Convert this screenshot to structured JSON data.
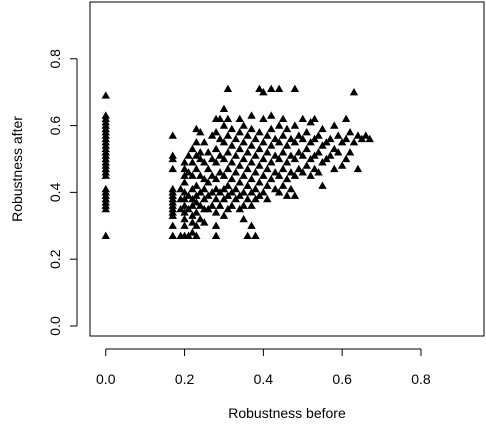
{
  "chart_data": {
    "type": "scatter",
    "title": "",
    "xlabel": "Robustness before",
    "ylabel": "Robustness after",
    "xlim": [
      -0.04,
      0.96
    ],
    "ylim": [
      -0.03,
      0.97
    ],
    "x_ticks": [
      0.0,
      0.2,
      0.4,
      0.6,
      0.8
    ],
    "x_tick_labels": [
      "0.0",
      "0.2",
      "0.4",
      "0.6",
      "0.8"
    ],
    "y_ticks": [
      0.0,
      0.2,
      0.4,
      0.6,
      0.8
    ],
    "y_tick_labels": [
      "0.0",
      "0.2",
      "0.4",
      "0.6",
      "0.8"
    ],
    "grid": false,
    "marker": "filled-triangle",
    "marker_color": "#000000",
    "series": [
      {
        "points": [
          [
            0.0,
            0.69
          ],
          [
            0.0,
            0.63
          ],
          [
            0.0,
            0.62
          ],
          [
            0.0,
            0.61
          ],
          [
            0.0,
            0.6
          ],
          [
            0.0,
            0.59
          ],
          [
            0.0,
            0.58
          ],
          [
            0.0,
            0.57
          ],
          [
            0.0,
            0.56
          ],
          [
            0.0,
            0.55
          ],
          [
            0.0,
            0.54
          ],
          [
            0.0,
            0.53
          ],
          [
            0.0,
            0.52
          ],
          [
            0.0,
            0.51
          ],
          [
            0.0,
            0.5
          ],
          [
            0.0,
            0.49
          ],
          [
            0.0,
            0.48
          ],
          [
            0.0,
            0.47
          ],
          [
            0.0,
            0.46
          ],
          [
            0.0,
            0.45
          ],
          [
            0.0,
            0.41
          ],
          [
            0.0,
            0.4
          ],
          [
            0.0,
            0.39
          ],
          [
            0.0,
            0.38
          ],
          [
            0.0,
            0.37
          ],
          [
            0.0,
            0.36
          ],
          [
            0.0,
            0.35
          ],
          [
            0.0,
            0.27
          ],
          [
            0.17,
            0.57
          ],
          [
            0.17,
            0.51
          ],
          [
            0.17,
            0.5
          ],
          [
            0.17,
            0.47
          ],
          [
            0.17,
            0.41
          ],
          [
            0.17,
            0.4
          ],
          [
            0.17,
            0.39
          ],
          [
            0.17,
            0.38
          ],
          [
            0.17,
            0.37
          ],
          [
            0.17,
            0.36
          ],
          [
            0.17,
            0.35
          ],
          [
            0.17,
            0.34
          ],
          [
            0.17,
            0.33
          ],
          [
            0.17,
            0.3
          ],
          [
            0.17,
            0.27
          ],
          [
            0.19,
            0.41
          ],
          [
            0.19,
            0.38
          ],
          [
            0.19,
            0.35
          ],
          [
            0.19,
            0.27
          ],
          [
            0.2,
            0.49
          ],
          [
            0.2,
            0.47
          ],
          [
            0.2,
            0.45
          ],
          [
            0.2,
            0.43
          ],
          [
            0.2,
            0.4
          ],
          [
            0.2,
            0.38
          ],
          [
            0.2,
            0.36
          ],
          [
            0.2,
            0.34
          ],
          [
            0.2,
            0.32
          ],
          [
            0.2,
            0.3
          ],
          [
            0.2,
            0.27
          ],
          [
            0.21,
            0.51
          ],
          [
            0.21,
            0.46
          ],
          [
            0.21,
            0.39
          ],
          [
            0.21,
            0.35
          ],
          [
            0.21,
            0.27
          ],
          [
            0.22,
            0.53
          ],
          [
            0.22,
            0.49
          ],
          [
            0.22,
            0.45
          ],
          [
            0.22,
            0.41
          ],
          [
            0.22,
            0.38
          ],
          [
            0.22,
            0.36
          ],
          [
            0.22,
            0.33
          ],
          [
            0.22,
            0.31
          ],
          [
            0.22,
            0.28
          ],
          [
            0.23,
            0.59
          ],
          [
            0.23,
            0.55
          ],
          [
            0.23,
            0.51
          ],
          [
            0.23,
            0.47
          ],
          [
            0.23,
            0.42
          ],
          [
            0.23,
            0.39
          ],
          [
            0.23,
            0.37
          ],
          [
            0.23,
            0.34
          ],
          [
            0.23,
            0.3
          ],
          [
            0.23,
            0.27
          ],
          [
            0.24,
            0.58
          ],
          [
            0.24,
            0.52
          ],
          [
            0.24,
            0.5
          ],
          [
            0.24,
            0.45
          ],
          [
            0.24,
            0.4
          ],
          [
            0.24,
            0.36
          ],
          [
            0.24,
            0.32
          ],
          [
            0.25,
            0.55
          ],
          [
            0.25,
            0.49
          ],
          [
            0.25,
            0.44
          ],
          [
            0.25,
            0.41
          ],
          [
            0.25,
            0.38
          ],
          [
            0.25,
            0.35
          ],
          [
            0.25,
            0.31
          ],
          [
            0.26,
            0.52
          ],
          [
            0.26,
            0.47
          ],
          [
            0.26,
            0.43
          ],
          [
            0.26,
            0.39
          ],
          [
            0.26,
            0.35
          ],
          [
            0.27,
            0.57
          ],
          [
            0.27,
            0.5
          ],
          [
            0.27,
            0.45
          ],
          [
            0.27,
            0.4
          ],
          [
            0.27,
            0.36
          ],
          [
            0.28,
            0.62
          ],
          [
            0.28,
            0.58
          ],
          [
            0.28,
            0.53
          ],
          [
            0.28,
            0.49
          ],
          [
            0.28,
            0.44
          ],
          [
            0.28,
            0.41
          ],
          [
            0.28,
            0.38
          ],
          [
            0.28,
            0.34
          ],
          [
            0.28,
            0.3
          ],
          [
            0.28,
            0.27
          ],
          [
            0.29,
            0.62
          ],
          [
            0.29,
            0.56
          ],
          [
            0.29,
            0.51
          ],
          [
            0.29,
            0.46
          ],
          [
            0.29,
            0.4
          ],
          [
            0.29,
            0.36
          ],
          [
            0.3,
            0.65
          ],
          [
            0.3,
            0.6
          ],
          [
            0.3,
            0.55
          ],
          [
            0.3,
            0.5
          ],
          [
            0.3,
            0.45
          ],
          [
            0.3,
            0.41
          ],
          [
            0.3,
            0.38
          ],
          [
            0.3,
            0.33
          ],
          [
            0.31,
            0.71
          ],
          [
            0.31,
            0.62
          ],
          [
            0.31,
            0.57
          ],
          [
            0.31,
            0.52
          ],
          [
            0.31,
            0.47
          ],
          [
            0.31,
            0.42
          ],
          [
            0.31,
            0.39
          ],
          [
            0.31,
            0.35
          ],
          [
            0.32,
            0.59
          ],
          [
            0.32,
            0.54
          ],
          [
            0.32,
            0.49
          ],
          [
            0.32,
            0.44
          ],
          [
            0.32,
            0.4
          ],
          [
            0.32,
            0.36
          ],
          [
            0.33,
            0.56
          ],
          [
            0.33,
            0.51
          ],
          [
            0.33,
            0.46
          ],
          [
            0.33,
            0.41
          ],
          [
            0.33,
            0.38
          ],
          [
            0.34,
            0.62
          ],
          [
            0.34,
            0.58
          ],
          [
            0.34,
            0.53
          ],
          [
            0.34,
            0.48
          ],
          [
            0.34,
            0.43
          ],
          [
            0.34,
            0.39
          ],
          [
            0.34,
            0.35
          ],
          [
            0.35,
            0.6
          ],
          [
            0.35,
            0.55
          ],
          [
            0.35,
            0.5
          ],
          [
            0.35,
            0.45
          ],
          [
            0.35,
            0.4
          ],
          [
            0.35,
            0.36
          ],
          [
            0.35,
            0.32
          ],
          [
            0.36,
            0.57
          ],
          [
            0.36,
            0.52
          ],
          [
            0.36,
            0.47
          ],
          [
            0.36,
            0.42
          ],
          [
            0.36,
            0.38
          ],
          [
            0.36,
            0.27
          ],
          [
            0.37,
            0.63
          ],
          [
            0.37,
            0.59
          ],
          [
            0.37,
            0.54
          ],
          [
            0.37,
            0.49
          ],
          [
            0.37,
            0.44
          ],
          [
            0.37,
            0.4
          ],
          [
            0.37,
            0.36
          ],
          [
            0.37,
            0.3
          ],
          [
            0.38,
            0.56
          ],
          [
            0.38,
            0.51
          ],
          [
            0.38,
            0.46
          ],
          [
            0.38,
            0.41
          ],
          [
            0.38,
            0.38
          ],
          [
            0.38,
            0.27
          ],
          [
            0.39,
            0.71
          ],
          [
            0.39,
            0.58
          ],
          [
            0.39,
            0.53
          ],
          [
            0.39,
            0.48
          ],
          [
            0.39,
            0.43
          ],
          [
            0.39,
            0.39
          ],
          [
            0.4,
            0.7
          ],
          [
            0.4,
            0.62
          ],
          [
            0.4,
            0.55
          ],
          [
            0.4,
            0.5
          ],
          [
            0.4,
            0.45
          ],
          [
            0.4,
            0.4
          ],
          [
            0.41,
            0.57
          ],
          [
            0.41,
            0.52
          ],
          [
            0.41,
            0.47
          ],
          [
            0.41,
            0.42
          ],
          [
            0.41,
            0.38
          ],
          [
            0.42,
            0.71
          ],
          [
            0.42,
            0.63
          ],
          [
            0.42,
            0.59
          ],
          [
            0.42,
            0.54
          ],
          [
            0.42,
            0.49
          ],
          [
            0.42,
            0.44
          ],
          [
            0.43,
            0.56
          ],
          [
            0.43,
            0.51
          ],
          [
            0.43,
            0.46
          ],
          [
            0.43,
            0.41
          ],
          [
            0.44,
            0.71
          ],
          [
            0.44,
            0.6
          ],
          [
            0.44,
            0.55
          ],
          [
            0.44,
            0.5
          ],
          [
            0.44,
            0.45
          ],
          [
            0.44,
            0.4
          ],
          [
            0.45,
            0.62
          ],
          [
            0.45,
            0.57
          ],
          [
            0.45,
            0.52
          ],
          [
            0.45,
            0.47
          ],
          [
            0.45,
            0.42
          ],
          [
            0.46,
            0.59
          ],
          [
            0.46,
            0.54
          ],
          [
            0.46,
            0.49
          ],
          [
            0.46,
            0.44
          ],
          [
            0.46,
            0.39
          ],
          [
            0.47,
            0.56
          ],
          [
            0.47,
            0.51
          ],
          [
            0.47,
            0.46
          ],
          [
            0.47,
            0.41
          ],
          [
            0.48,
            0.71
          ],
          [
            0.48,
            0.6
          ],
          [
            0.48,
            0.55
          ],
          [
            0.48,
            0.5
          ],
          [
            0.48,
            0.45
          ],
          [
            0.48,
            0.39
          ],
          [
            0.49,
            0.57
          ],
          [
            0.49,
            0.52
          ],
          [
            0.49,
            0.47
          ],
          [
            0.5,
            0.62
          ],
          [
            0.5,
            0.56
          ],
          [
            0.5,
            0.51
          ],
          [
            0.5,
            0.46
          ],
          [
            0.51,
            0.58
          ],
          [
            0.51,
            0.53
          ],
          [
            0.51,
            0.48
          ],
          [
            0.52,
            0.61
          ],
          [
            0.52,
            0.55
          ],
          [
            0.52,
            0.5
          ],
          [
            0.52,
            0.45
          ],
          [
            0.53,
            0.62
          ],
          [
            0.53,
            0.56
          ],
          [
            0.53,
            0.51
          ],
          [
            0.53,
            0.47
          ],
          [
            0.54,
            0.57
          ],
          [
            0.54,
            0.52
          ],
          [
            0.54,
            0.46
          ],
          [
            0.55,
            0.59
          ],
          [
            0.55,
            0.54
          ],
          [
            0.55,
            0.49
          ],
          [
            0.55,
            0.42
          ],
          [
            0.56,
            0.55
          ],
          [
            0.56,
            0.5
          ],
          [
            0.57,
            0.56
          ],
          [
            0.57,
            0.51
          ],
          [
            0.58,
            0.6
          ],
          [
            0.58,
            0.53
          ],
          [
            0.58,
            0.47
          ],
          [
            0.59,
            0.57
          ],
          [
            0.59,
            0.52
          ],
          [
            0.6,
            0.55
          ],
          [
            0.6,
            0.48
          ],
          [
            0.61,
            0.62
          ],
          [
            0.61,
            0.56
          ],
          [
            0.61,
            0.5
          ],
          [
            0.62,
            0.58
          ],
          [
            0.62,
            0.52
          ],
          [
            0.63,
            0.7
          ],
          [
            0.63,
            0.55
          ],
          [
            0.64,
            0.57
          ],
          [
            0.64,
            0.47
          ],
          [
            0.65,
            0.56
          ],
          [
            0.66,
            0.57
          ],
          [
            0.67,
            0.56
          ]
        ]
      }
    ]
  }
}
